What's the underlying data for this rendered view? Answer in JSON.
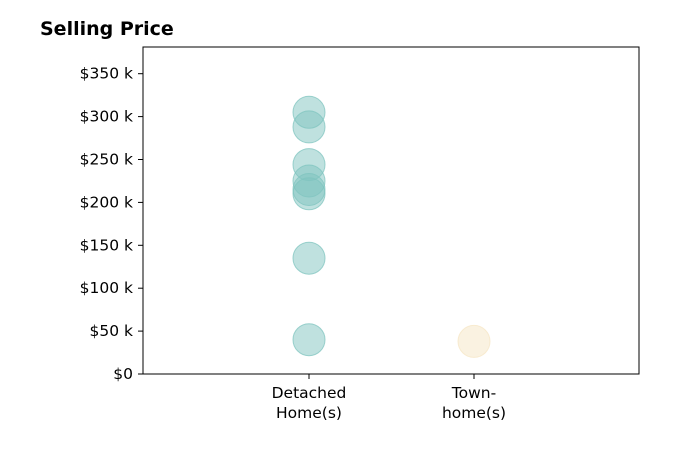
{
  "chart_data": {
    "type": "scatter",
    "title": "Selling Price",
    "xlabel": "",
    "ylabel": "",
    "categories": [
      [
        "Detached",
        "Home(s)"
      ],
      [
        "Town-",
        "home(s)"
      ]
    ],
    "ylim": [
      0,
      380000
    ],
    "yticks": [
      {
        "value": 0,
        "label": "$0"
      },
      {
        "value": 50000,
        "label": "$50 k"
      },
      {
        "value": 100000,
        "label": "$100 k"
      },
      {
        "value": 150000,
        "label": "$150 k"
      },
      {
        "value": 200000,
        "label": "$200 k"
      },
      {
        "value": 250000,
        "label": "$250 k"
      },
      {
        "value": 300000,
        "label": "$300 k"
      },
      {
        "value": 350000,
        "label": "$350 k"
      }
    ],
    "series": [
      {
        "category": 0,
        "color": "#7fc4bf",
        "values": [
          305000,
          288000,
          244000,
          225000,
          215000,
          210000,
          135000,
          40000
        ]
      },
      {
        "category": 1,
        "color": "#f5e6c4",
        "values": [
          38000
        ]
      }
    ],
    "grid": false,
    "legend": "none"
  }
}
